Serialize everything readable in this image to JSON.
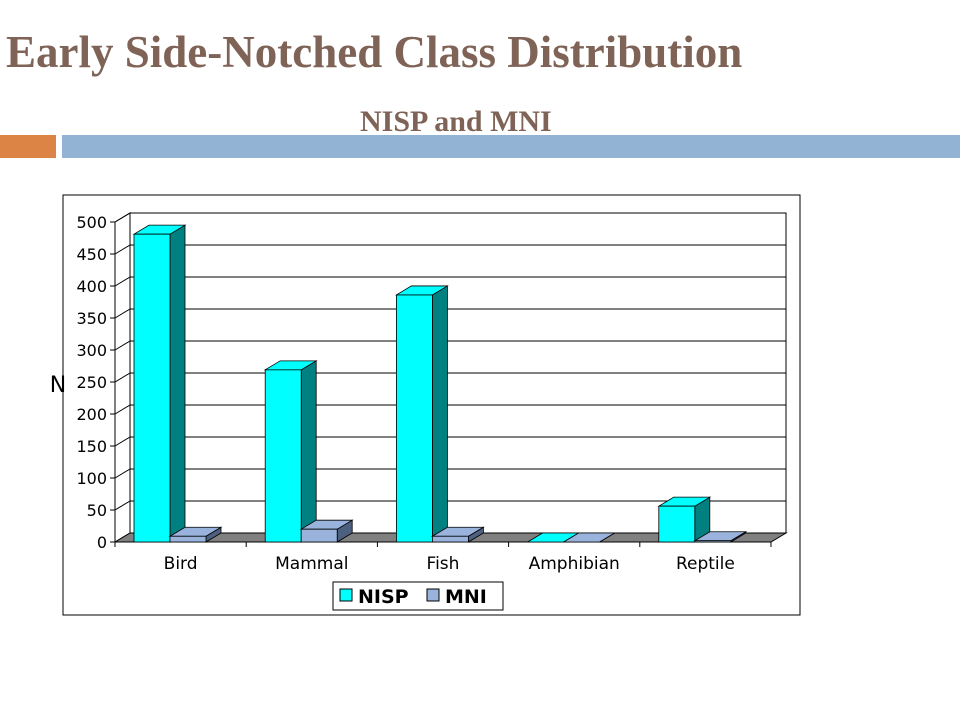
{
  "slide": {
    "title": "Early Side-Notched Class Distribution",
    "subtitle": "NISP and MNI"
  },
  "colors": {
    "title": "#7f6356",
    "accent_orange": "#dc8446",
    "accent_blue": "#93b3d4",
    "nisp": "#00ffff",
    "nisp_dark": "#008080",
    "mni": "#99b3dd",
    "mni_dark": "#4d6080",
    "floor": "#808080",
    "gridline": "#000000"
  },
  "chart_data": {
    "type": "bar",
    "title": "",
    "xlabel": "",
    "ylabel": "N",
    "categories": [
      "Bird",
      "Mammal",
      "Fish",
      "Amphibian",
      "Reptile"
    ],
    "series": [
      {
        "name": "NISP",
        "values": [
          481,
          269,
          386,
          0,
          56
        ]
      },
      {
        "name": "MNI",
        "values": [
          9,
          20,
          9,
          0,
          2
        ]
      }
    ],
    "ylim": [
      0,
      500
    ],
    "yticks": [
      0,
      50,
      100,
      150,
      200,
      250,
      300,
      350,
      400,
      450,
      500
    ],
    "grid": true,
    "three_d": true,
    "legend_position": "bottom"
  }
}
